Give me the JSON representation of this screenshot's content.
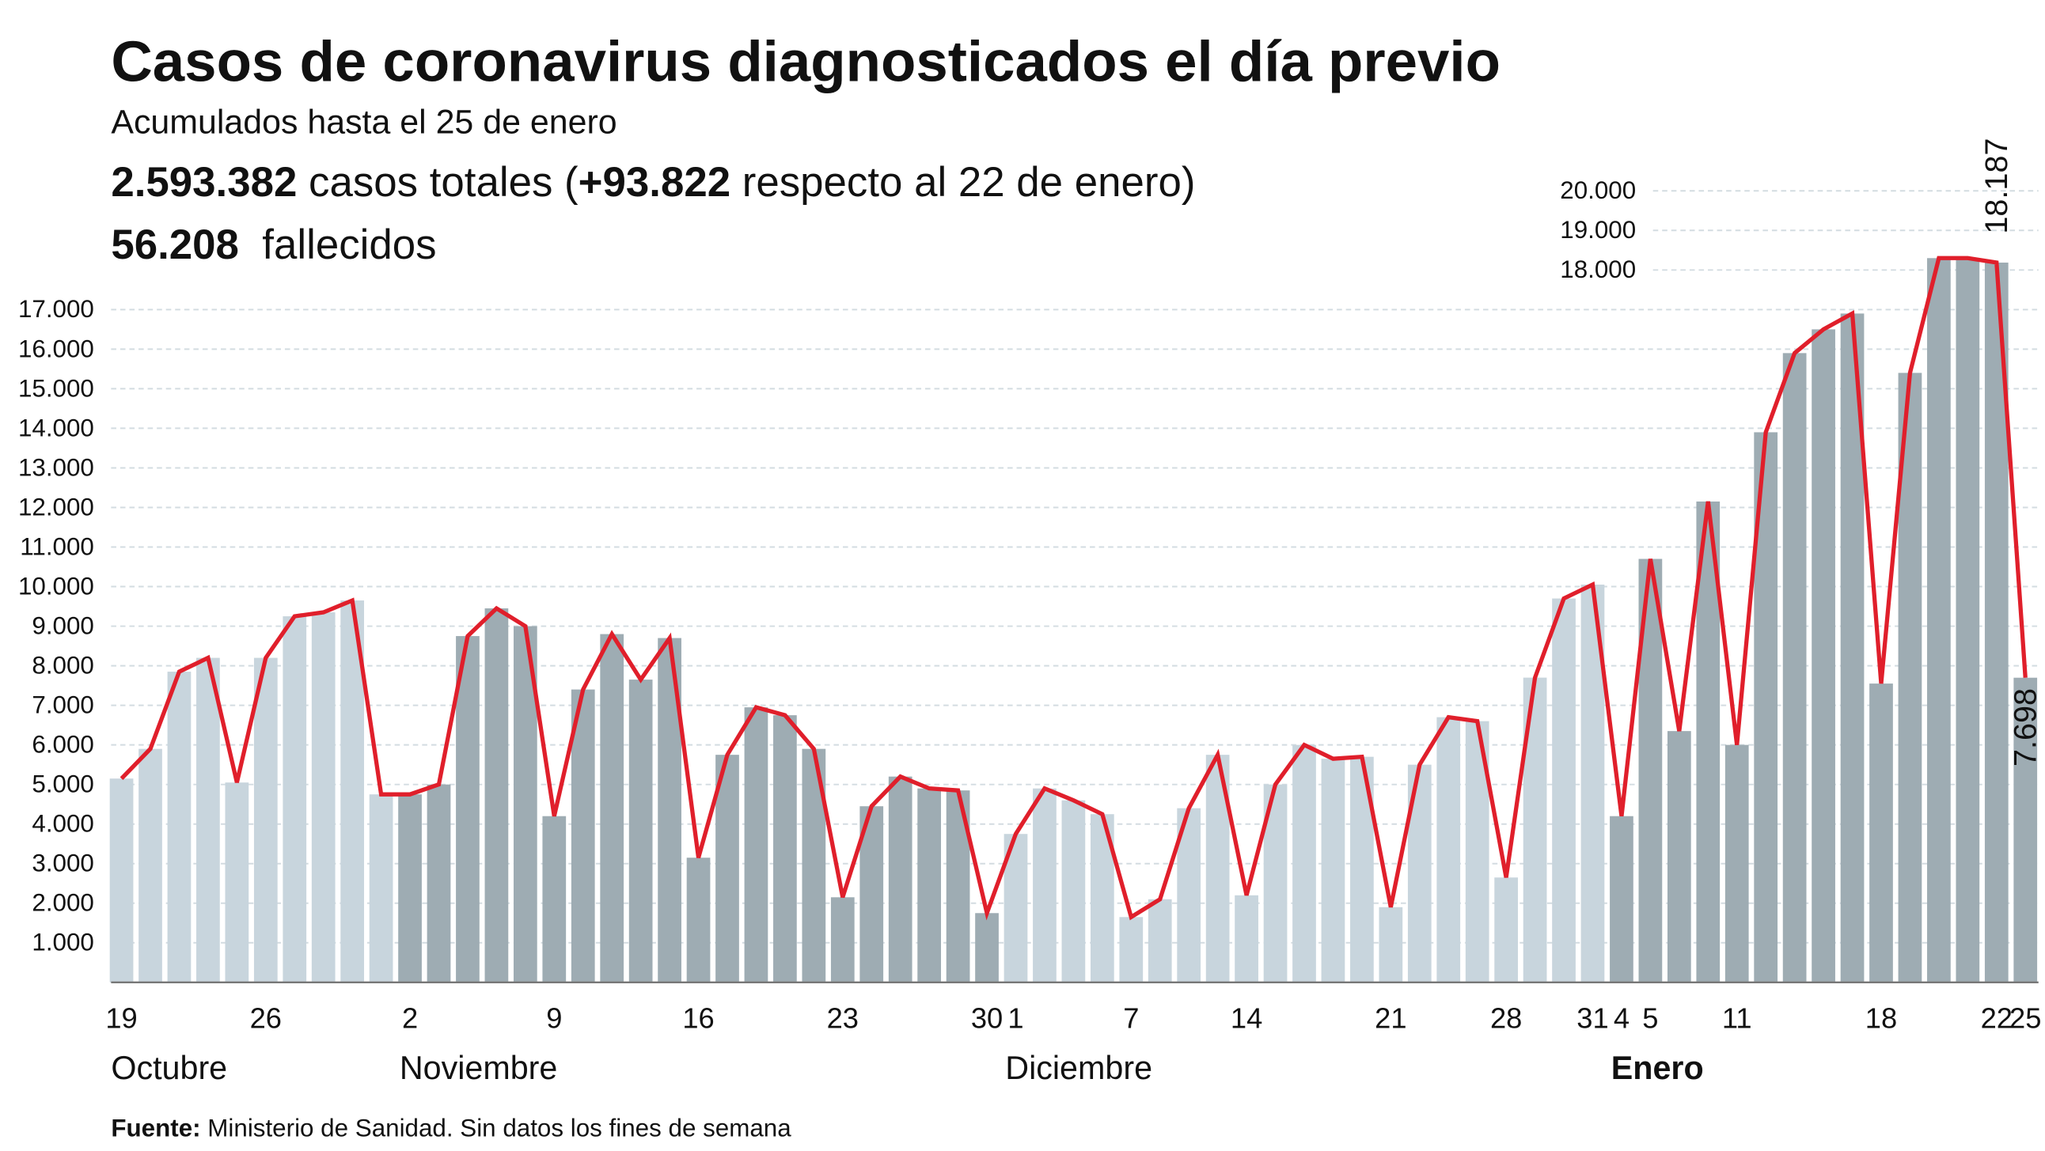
{
  "title": "Casos de coronavirus diagnosticados el día previo",
  "subtitle": "Acumulados hasta el 25 de enero",
  "totals": {
    "cases_value": "2.593.382",
    "cases_text": " casos totales (",
    "delta_value": "+93.822",
    "delta_text": " respecto al 22 de enero)",
    "deaths_value": "56.208",
    "deaths_text": "  fallecidos"
  },
  "source": {
    "label": "Fuente:",
    "text": " Ministerio de Sanidad. Sin datos los fines de semana"
  },
  "colors": {
    "light_bar": "#c8d5dd",
    "dark_bar": "#9eacb3",
    "line": "#e01f2b",
    "grid": "#d3dce1"
  },
  "chart_data": {
    "type": "bar",
    "title": "Casos de coronavirus diagnosticados el día previo",
    "xlabel": "",
    "ylabel": "",
    "ylim": [
      0,
      20000
    ],
    "grid": true,
    "y_ticks": [
      "1.000",
      "2.000",
      "3.000",
      "4.000",
      "5.000",
      "6.000",
      "7.000",
      "8.000",
      "9.000",
      "10.000",
      "11.000",
      "12.000",
      "13.000",
      "14.000",
      "15.000",
      "16.000",
      "17.000",
      "18.000",
      "19.000",
      "20.000"
    ],
    "y_tick_values": [
      1000,
      2000,
      3000,
      4000,
      5000,
      6000,
      7000,
      8000,
      9000,
      10000,
      11000,
      12000,
      13000,
      14000,
      15000,
      16000,
      17000,
      18000,
      19000,
      20000
    ],
    "months": [
      {
        "name": "Octubre",
        "start": 0,
        "end": 9,
        "shade": "light",
        "bold": false
      },
      {
        "name": "Noviembre",
        "start": 10,
        "end": 30,
        "shade": "dark",
        "bold": false
      },
      {
        "name": "Diciembre",
        "start": 31,
        "end": 51,
        "shade": "light",
        "bold": false
      },
      {
        "name": "Enero",
        "start": 52,
        "end": 66,
        "shade": "dark",
        "bold": true
      }
    ],
    "x_ticks": [
      {
        "index": 0,
        "label": "19"
      },
      {
        "index": 5,
        "label": "26"
      },
      {
        "index": 10,
        "label": "2"
      },
      {
        "index": 15,
        "label": "9"
      },
      {
        "index": 20,
        "label": "16"
      },
      {
        "index": 25,
        "label": "23"
      },
      {
        "index": 30,
        "label": "30"
      },
      {
        "index": 31,
        "label": "1"
      },
      {
        "index": 35,
        "label": "7"
      },
      {
        "index": 39,
        "label": "14"
      },
      {
        "index": 44,
        "label": "21"
      },
      {
        "index": 48,
        "label": "28"
      },
      {
        "index": 51,
        "label": "31"
      },
      {
        "index": 52,
        "label": "4"
      },
      {
        "index": 53,
        "label": "5"
      },
      {
        "index": 56,
        "label": "11"
      },
      {
        "index": 61,
        "label": "18"
      },
      {
        "index": 65,
        "label": "22"
      },
      {
        "index": 66,
        "label": "25"
      }
    ],
    "values": [
      5150,
      5900,
      7850,
      8200,
      5050,
      8200,
      9250,
      9350,
      9650,
      4750,
      4750,
      5000,
      8750,
      9450,
      9000,
      4200,
      7400,
      8800,
      7650,
      8700,
      3150,
      5750,
      6950,
      6750,
      5900,
      2150,
      4450,
      5200,
      4900,
      4850,
      1750,
      3750,
      4900,
      4600,
      4250,
      1650,
      2100,
      4400,
      5750,
      2200,
      5000,
      6000,
      5650,
      5700,
      1900,
      5500,
      6700,
      6600,
      2650,
      7700,
      9700,
      10050,
      4200,
      10700,
      6350,
      12150,
      6000,
      13900,
      15900,
      16500,
      16900,
      7550,
      15400,
      18300,
      18300,
      18187,
      7698
    ],
    "annotations": [
      {
        "index": 65,
        "label": "18.187"
      },
      {
        "index": 66,
        "label": "7.698"
      }
    ]
  }
}
